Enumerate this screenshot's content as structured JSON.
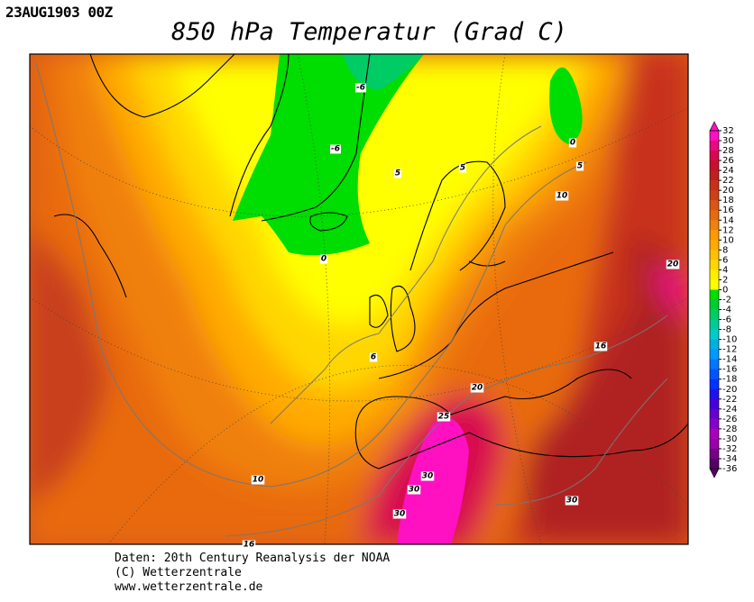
{
  "header": {
    "date": "23AUG1903 00Z",
    "title": "850 hPa Temperatur (Grad C)"
  },
  "colorbar": {
    "levels": [
      32,
      30,
      28,
      26,
      24,
      22,
      20,
      18,
      16,
      14,
      12,
      10,
      8,
      6,
      4,
      2,
      0,
      -2,
      -4,
      -6,
      -8,
      -10,
      -12,
      -14,
      -16,
      -18,
      -20,
      -22,
      -24,
      -26,
      -28,
      -30,
      -32,
      -34,
      -36
    ],
    "colors": [
      "#ff10c0",
      "#e80a80",
      "#d80850",
      "#c8102e",
      "#c0201e",
      "#c8301a",
      "#d04018",
      "#dd5515",
      "#e86a10",
      "#f08010",
      "#ff9900",
      "#ffaa00",
      "#ffc000",
      "#ffd700",
      "#ffee00",
      "#ffff00",
      "#00dd00",
      "#00cc33",
      "#00cc66",
      "#00cc99",
      "#00cccc",
      "#00b0e0",
      "#0099ff",
      "#0077ff",
      "#0055ff",
      "#0033ff",
      "#2211ee",
      "#4400dd",
      "#6600cc",
      "#8800cc",
      "#aa00bb",
      "#9900aa",
      "#770088",
      "#550066"
    ]
  },
  "contour_labels": [
    "-6",
    "-6",
    "5",
    "5",
    "0",
    "5",
    "10",
    "0",
    "20",
    "16",
    "6",
    "20",
    "25",
    "30",
    "30",
    "30",
    "30",
    "10",
    "16"
  ],
  "footer": [
    "Daten: 20th Century Reanalysis der NOAA",
    "(C) Wetterzentrale",
    "www.wetterzentrale.de"
  ]
}
